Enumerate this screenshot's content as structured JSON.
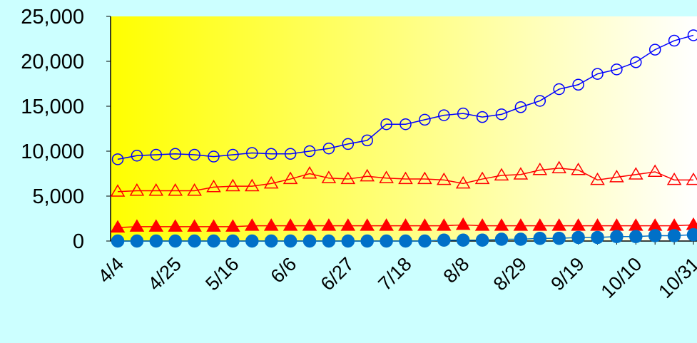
{
  "chart_data": {
    "type": "line",
    "title": "",
    "xlabel": "",
    "ylabel": "",
    "ylim": [
      0,
      25000
    ],
    "yticks": [
      0,
      5000,
      10000,
      15000,
      20000,
      25000
    ],
    "ytick_labels": [
      "0",
      "5,000",
      "10,000",
      "15,000",
      "20,000",
      "25,000"
    ],
    "xtick_labels": [
      "4/4",
      "4/25",
      "5/16",
      "6/6",
      "6/27",
      "7/18",
      "8/8",
      "8/29",
      "9/19",
      "10/10",
      "10/31"
    ],
    "xtick_every": 3,
    "grid": false,
    "legend": "none",
    "background_gradient": [
      "#ffff00",
      "#ffffff"
    ],
    "page_background": "#ccffff",
    "series": [
      {
        "marker": "open-circle",
        "color": "#0000ff",
        "values": [
          9100,
          9500,
          9600,
          9700,
          9600,
          9400,
          9600,
          9800,
          9700,
          9700,
          10000,
          10300,
          10800,
          11200,
          13000,
          13000,
          13500,
          14000,
          14200,
          13800,
          14100,
          14900,
          15600,
          16900,
          17400,
          18600,
          19100,
          19900,
          21300,
          22300,
          22900
        ]
      },
      {
        "marker": "open-triangle",
        "color": "#ff0000",
        "values": [
          5500,
          5600,
          5600,
          5600,
          5600,
          6000,
          6100,
          6100,
          6400,
          6900,
          7500,
          7000,
          6900,
          7200,
          7000,
          6900,
          6900,
          6800,
          6400,
          6900,
          7300,
          7400,
          7900,
          8100,
          7900,
          6800,
          7100,
          7400,
          7700,
          6800,
          6800
        ]
      },
      {
        "marker": "filled-triangle",
        "color": "#ff0000",
        "values": [
          1500,
          1600,
          1600,
          1600,
          1600,
          1600,
          1600,
          1700,
          1700,
          1700,
          1700,
          1700,
          1700,
          1700,
          1700,
          1700,
          1700,
          1700,
          1800,
          1700,
          1700,
          1700,
          1700,
          1700,
          1700,
          1700,
          1700,
          1700,
          1700,
          1700,
          1800
        ]
      },
      {
        "marker": "filled-circle",
        "color": "#0070c8",
        "values": [
          0,
          0,
          0,
          0,
          0,
          0,
          0,
          0,
          0,
          0,
          0,
          0,
          0,
          0,
          0,
          0,
          0,
          100,
          100,
          100,
          200,
          200,
          300,
          300,
          400,
          400,
          500,
          500,
          600,
          600,
          700
        ]
      }
    ]
  }
}
